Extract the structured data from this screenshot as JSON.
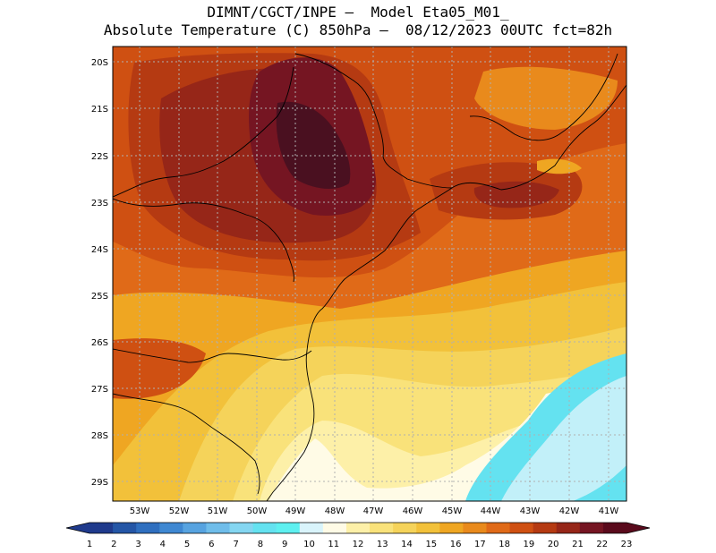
{
  "title": {
    "line1": "DIMNT/CGCT/INPE –  Model Eta05_M01_",
    "line2": "Absolute Temperature (C) 850hPa –  08/12/2023 00UTC fct=82h"
  },
  "axes": {
    "lat_labels": [
      "20S",
      "21S",
      "22S",
      "23S",
      "24S",
      "25S",
      "26S",
      "27S",
      "28S",
      "29S"
    ],
    "lon_labels": [
      "53W",
      "52W",
      "51W",
      "50W",
      "49W",
      "48W",
      "47W",
      "46W",
      "45W",
      "44W",
      "43W",
      "42W",
      "41W"
    ]
  },
  "colorbar": {
    "labels": [
      "1",
      "2",
      "3",
      "4",
      "5",
      "6",
      "7",
      "8",
      "9",
      "10",
      "11",
      "12",
      "13",
      "14",
      "15",
      "16",
      "17",
      "18",
      "19",
      "20",
      "21",
      "22",
      "23"
    ],
    "colors": [
      "#1f3a8c",
      "#2456a6",
      "#2f6fbf",
      "#3f88d2",
      "#57a3e0",
      "#6fbdea",
      "#84d6f1",
      "#64e2f0",
      "#5ef0f0",
      "#d9f4fb",
      "#fffbe6",
      "#fdf0a8",
      "#f9e27a",
      "#f5d35a",
      "#f2c13a",
      "#efa622",
      "#e98a1c",
      "#e06a18",
      "#cf5012",
      "#b53a12",
      "#962618",
      "#751522",
      "#5a0a1c"
    ]
  },
  "regions": [
    {
      "name": "cool-sea-region",
      "color": "#64e2f0"
    },
    {
      "name": "very-cool-region",
      "color": "#d9f4fb"
    },
    {
      "name": "warm-core-region",
      "color": "#751522"
    },
    {
      "name": "hottest-core-region",
      "color": "#4a1020"
    }
  ]
}
